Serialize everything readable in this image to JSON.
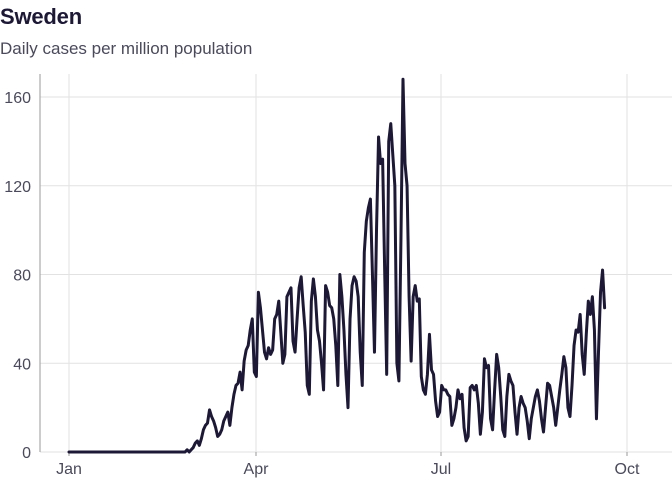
{
  "chart_data": {
    "type": "line",
    "title": "Sweden",
    "subtitle": "Daily cases per million population",
    "xlabel": "",
    "ylabel": "",
    "ylim": [
      0,
      168
    ],
    "y_ticks": [
      0,
      40,
      80,
      120,
      160
    ],
    "x_ticks": [
      "Jan",
      "Apr",
      "Jul",
      "Oct"
    ],
    "grid": true,
    "line_color": "#1c1836",
    "series": [
      {
        "values": [
          0,
          0,
          0,
          0,
          0,
          0,
          0,
          0,
          0,
          0,
          0,
          0,
          0,
          0,
          0,
          0,
          0,
          0,
          0,
          0,
          0,
          0,
          0,
          0,
          0,
          0,
          0,
          0,
          0,
          0,
          0,
          0,
          0,
          0,
          0,
          0,
          0,
          0,
          0,
          0,
          0,
          0,
          0,
          0,
          0,
          0,
          0,
          0,
          0,
          0,
          0,
          0,
          0,
          0,
          0,
          0,
          0,
          0,
          1,
          0,
          1,
          2,
          4,
          5,
          3,
          6,
          10,
          12,
          13,
          19,
          16,
          14,
          11,
          7,
          8,
          10,
          14,
          16,
          18,
          12,
          20,
          26,
          30,
          31,
          36,
          28,
          41,
          46,
          48,
          55,
          60,
          36,
          34,
          72,
          65,
          55,
          45,
          42,
          47,
          44,
          46,
          60,
          62,
          68,
          54,
          40,
          44,
          70,
          72,
          74,
          50,
          45,
          60,
          74,
          79,
          66,
          54,
          30,
          26,
          68,
          78,
          70,
          55,
          50,
          40,
          28,
          75,
          72,
          66,
          65,
          60,
          48,
          30,
          80,
          70,
          55,
          35,
          20,
          60,
          75,
          79,
          77,
          70,
          45,
          30,
          90,
          104,
          110,
          114,
          80,
          45,
          100,
          142,
          130,
          132,
          82,
          35,
          140,
          148,
          134,
          120,
          40,
          32,
          96,
          168,
          130,
          120,
          70,
          41,
          70,
          75,
          68,
          69,
          34,
          28,
          26,
          35,
          53,
          37,
          35,
          23,
          16,
          18,
          30,
          28,
          28,
          26,
          25,
          12,
          15,
          20,
          28,
          24,
          26,
          11,
          5,
          7,
          29,
          30,
          28,
          30,
          22,
          8,
          18,
          42,
          38,
          39,
          15,
          10,
          28,
          44,
          38,
          25,
          10,
          7,
          25,
          35,
          32,
          30,
          18,
          8,
          20,
          25,
          22,
          20,
          14,
          6,
          15,
          20,
          25,
          28,
          23,
          15,
          9,
          20,
          31,
          30,
          25,
          20,
          12,
          20,
          28,
          35,
          43,
          38,
          20,
          16,
          30,
          48,
          55,
          54,
          62,
          44,
          35,
          53,
          68,
          62,
          70,
          55,
          15,
          45,
          72,
          82,
          65
        ]
      }
    ]
  }
}
